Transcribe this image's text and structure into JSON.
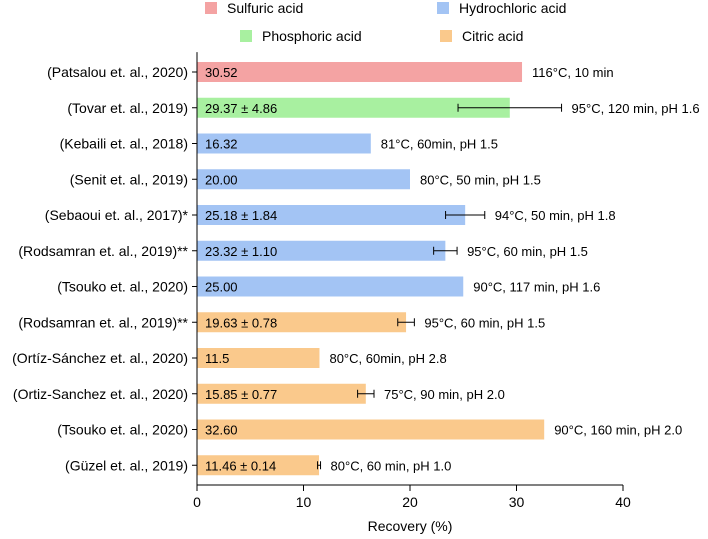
{
  "chart_data": {
    "type": "bar",
    "orientation": "horizontal",
    "title": "",
    "xlabel": "Recovery (%)",
    "ylabel": "",
    "xlim": [
      0,
      40
    ],
    "xticks": [
      "0",
      "10",
      "20",
      "30",
      "40"
    ],
    "grid": false,
    "legend_position": "top",
    "legend": [
      {
        "name": "Sulfuric acid",
        "color": "#f4a3a3"
      },
      {
        "name": "Hydrochloric acid",
        "color": "#a3c4f4"
      },
      {
        "name": "Phosphoric acid",
        "color": "#a8f0a0"
      },
      {
        "name": "Citric acid",
        "color": "#fac98c"
      }
    ],
    "bars": [
      {
        "category": "(Patsalou et. al., 2020)",
        "acid": "Sulfuric acid",
        "value": 30.52,
        "error": null,
        "value_label": "30.52",
        "conditions": "116°C, 10 min"
      },
      {
        "category": "(Tovar et. al., 2019)",
        "acid": "Phosphoric acid",
        "value": 29.37,
        "error": 4.86,
        "value_label": "29.37 ± 4.86",
        "conditions": "95°C, 120 min, pH 1.6"
      },
      {
        "category": "(Kebaili et. al., 2018)",
        "acid": "Hydrochloric acid",
        "value": 16.32,
        "error": null,
        "value_label": "16.32",
        "conditions": "81°C, 60min, pH 1.5"
      },
      {
        "category": "(Senit et. al., 2019)",
        "acid": "Hydrochloric acid",
        "value": 20.0,
        "error": null,
        "value_label": "20.00",
        "conditions": "80°C, 50 min, pH 1.5"
      },
      {
        "category": "(Sebaoui et. al., 2017)*",
        "acid": "Hydrochloric acid",
        "value": 25.18,
        "error": 1.84,
        "value_label": "25.18 ± 1.84",
        "conditions": "94°C, 50 min, pH 1.8"
      },
      {
        "category": "(Rodsamran et. al., 2019)**",
        "acid": "Hydrochloric acid",
        "value": 23.32,
        "error": 1.1,
        "value_label": "23.32 ± 1.10",
        "conditions": "95°C, 60 min, pH 1.5"
      },
      {
        "category": "(Tsouko et. al., 2020)",
        "acid": "Hydrochloric acid",
        "value": 25.0,
        "error": null,
        "value_label": "25.00",
        "conditions": "90°C, 117 min, pH 1.6"
      },
      {
        "category": "(Rodsamran et. al., 2019)**",
        "acid": "Citric acid",
        "value": 19.63,
        "error": 0.78,
        "value_label": "19.63 ± 0.78",
        "conditions": "95°C, 60 min, pH 1.5"
      },
      {
        "category": "(Ortíz-Sánchez et. al., 2020)",
        "acid": "Citric acid",
        "value": 11.5,
        "error": null,
        "value_label": "11.5",
        "conditions": "80°C, 60min, pH 2.8"
      },
      {
        "category": "(Ortiz-Sanchez et. al., 2020)",
        "acid": "Citric acid",
        "value": 15.85,
        "error": 0.77,
        "value_label": "15.85 ± 0.77",
        "conditions": "75°C, 90 min, pH 2.0"
      },
      {
        "category": "(Tsouko et. al., 2020)",
        "acid": "Citric acid",
        "value": 32.6,
        "error": null,
        "value_label": "32.60",
        "conditions": "90°C, 160 min, pH 2.0"
      },
      {
        "category": "(Güzel et. al., 2019)",
        "acid": "Citric acid",
        "value": 11.46,
        "error": 0.14,
        "value_label": "11.46 ± 0.14",
        "conditions": "80°C, 60 min, pH 1.0"
      }
    ]
  }
}
